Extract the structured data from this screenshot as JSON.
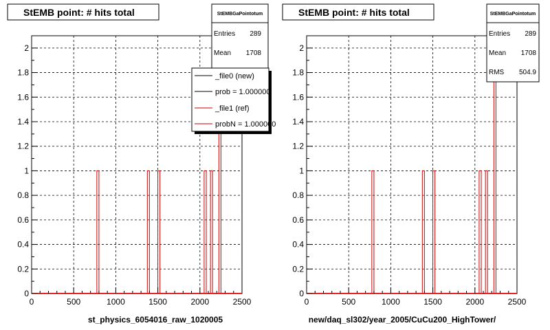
{
  "panels": [
    {
      "title": "StEMB point: # hits total",
      "xlabel": "st_physics_6054016_raw_1020005",
      "stats": {
        "name": "StEMBGaPointotum",
        "rows": [
          {
            "label": "Entries",
            "value": "289"
          },
          {
            "label": "Mean",
            "value": "1708"
          }
        ]
      },
      "legend": [
        {
          "label": "_file0 (new)",
          "color": "#000000"
        },
        {
          "label": "prob = 1.000000",
          "color": "#000000"
        },
        {
          "label": "_file1 (ref)",
          "color": "#cc0000"
        },
        {
          "label": "probN = 1.000000",
          "color": "#cc0000"
        }
      ]
    },
    {
      "title": "StEMB point: # hits total",
      "xlabel": "new/daq_sl302/year_2005/CuCu200_HighTower/",
      "stats": {
        "name": "StEMBGaPointotum",
        "rows": [
          {
            "label": "Entries",
            "value": "289"
          },
          {
            "label": "Mean",
            "value": "1708"
          },
          {
            "label": "RMS",
            "value": "504.9"
          }
        ]
      },
      "legend": []
    }
  ],
  "chart_data": [
    {
      "type": "bar",
      "title": "StEMB point: # hits total",
      "xlabel": "st_physics_6054016_raw_1020005",
      "ylabel": "",
      "xlim": [
        0,
        2500
      ],
      "ylim": [
        0,
        2.1
      ],
      "xticks": [
        0,
        500,
        1000,
        1500,
        2000,
        2500
      ],
      "yticks": [
        0,
        0.2,
        0.4,
        0.6,
        0.8,
        1,
        1.2,
        1.4,
        1.6,
        1.8,
        2
      ],
      "grid": true,
      "bin_width": 25,
      "line_color": "#cc0000",
      "series": [
        {
          "name": "_file1 (ref)",
          "bins": [
            {
              "x": 775,
              "y": 1
            },
            {
              "x": 1375,
              "y": 1
            },
            {
              "x": 1500,
              "y": 1
            },
            {
              "x": 2050,
              "y": 1
            },
            {
              "x": 2125,
              "y": 1
            },
            {
              "x": 2225,
              "y": 2
            }
          ]
        }
      ]
    },
    {
      "type": "bar",
      "title": "StEMB point: # hits total",
      "xlabel": "new/daq_sl302/year_2005/CuCu200_HighTower/",
      "ylabel": "",
      "xlim": [
        0,
        2500
      ],
      "ylim": [
        0,
        2.1
      ],
      "xticks": [
        0,
        500,
        1000,
        1500,
        2000,
        2500
      ],
      "yticks": [
        0,
        0.2,
        0.4,
        0.6,
        0.8,
        1,
        1.2,
        1.4,
        1.6,
        1.8,
        2
      ],
      "grid": true,
      "bin_width": 25,
      "line_color": "#cc0000",
      "series": [
        {
          "bins": [
            {
              "x": 775,
              "y": 1
            },
            {
              "x": 1375,
              "y": 1
            },
            {
              "x": 1500,
              "y": 1
            },
            {
              "x": 2050,
              "y": 1
            },
            {
              "x": 2125,
              "y": 1
            },
            {
              "x": 2225,
              "y": 2
            }
          ]
        }
      ]
    }
  ]
}
